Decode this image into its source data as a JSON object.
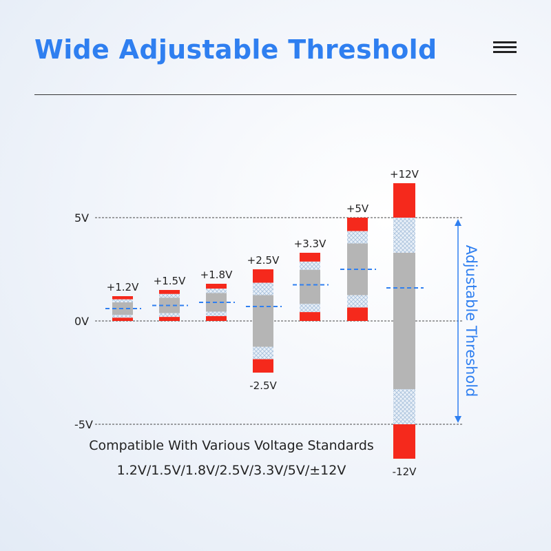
{
  "header": {
    "title": "Wide Adjustable Threshold",
    "menu_icon": "hamburger-menu-icon"
  },
  "caption": {
    "line1": "Compatible With Various Voltage Standards",
    "line2": "1.2V/1.5V/1.8V/2.5V/3.3V/5V/±12V"
  },
  "colors": {
    "title": "#2f7ff0",
    "logic_level": "#f5291c",
    "transition_zone": "#c9d7e6",
    "undefined_region": "#b5b5b5",
    "threshold": "#2f7ff0"
  },
  "chart_data": {
    "type": "bar",
    "title": "Wide Adjustable Threshold",
    "ylabel": "Adjustable Threshold",
    "yticks": [
      "5V",
      "0V",
      "-5V"
    ],
    "ylim": [
      -5,
      5
    ],
    "categories": [
      "±1.2V",
      "±1.5V",
      "±1.8V",
      "±2.5V",
      "±3.3V",
      "±5V",
      "±12V"
    ],
    "series": [
      {
        "top_label": "+1.2V",
        "bottom_label": "",
        "high": 1.2,
        "low": 0,
        "threshold": 0.6
      },
      {
        "top_label": "+1.5V",
        "bottom_label": "",
        "high": 1.5,
        "low": 0,
        "threshold": 0.75
      },
      {
        "top_label": "+1.8V",
        "bottom_label": "",
        "high": 1.8,
        "low": 0,
        "threshold": 0.9
      },
      {
        "top_label": "+2.5V",
        "bottom_label": "-2.5V",
        "high": 2.5,
        "low": -2.5,
        "threshold": 0.7
      },
      {
        "top_label": "+3.3V",
        "bottom_label": "",
        "high": 3.3,
        "low": 0,
        "threshold": 1.75
      },
      {
        "top_label": "+5V",
        "bottom_label": "",
        "high": 5,
        "low": 0,
        "threshold": 2.5
      },
      {
        "top_label": "+12V",
        "bottom_label": "-12V",
        "high": 12,
        "low": -12,
        "threshold": 1.6
      }
    ]
  }
}
